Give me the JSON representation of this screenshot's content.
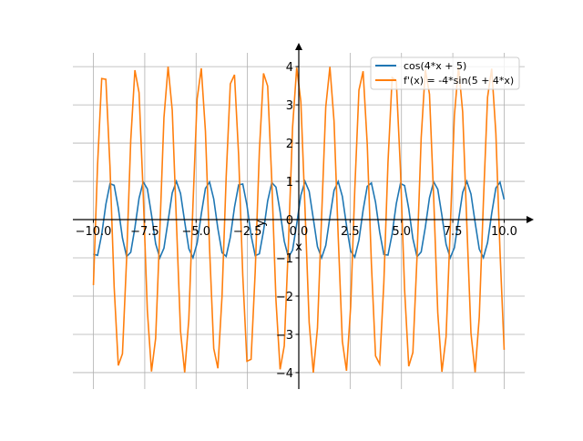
{
  "chart_data": {
    "type": "line",
    "title": "",
    "xlabel": "x",
    "ylabel": "y",
    "xlim": [
      -11.0,
      11.0
    ],
    "ylim": [
      -4.43,
      4.36
    ],
    "x_range": [
      -10,
      10
    ],
    "num_points": 100,
    "grid": true,
    "legend_placement": "top-right",
    "xticks": [
      -10,
      -7.5,
      -5,
      -2.5,
      0,
      2.5,
      5,
      7.5,
      10
    ],
    "xtick_labels": [
      "−10.0",
      "−7.5",
      "−5.0",
      "−2.5",
      "0.0",
      "2.5",
      "5.0",
      "7.5",
      "10.0"
    ],
    "yticks": [
      -4,
      -3,
      -2,
      -1,
      0,
      1,
      2,
      3,
      4
    ],
    "ytick_labels": [
      "−4",
      "−3",
      "−2",
      "−1",
      "0",
      "1",
      "2",
      "3",
      "4"
    ],
    "series": [
      {
        "name": "cos(4*x + 5)",
        "expr": "cos",
        "color": "#1f77b4"
      },
      {
        "name": "f'(x) = -4*sin(5 + 4*x)",
        "expr": "dsin",
        "color": "#ff7f0e"
      }
    ]
  }
}
